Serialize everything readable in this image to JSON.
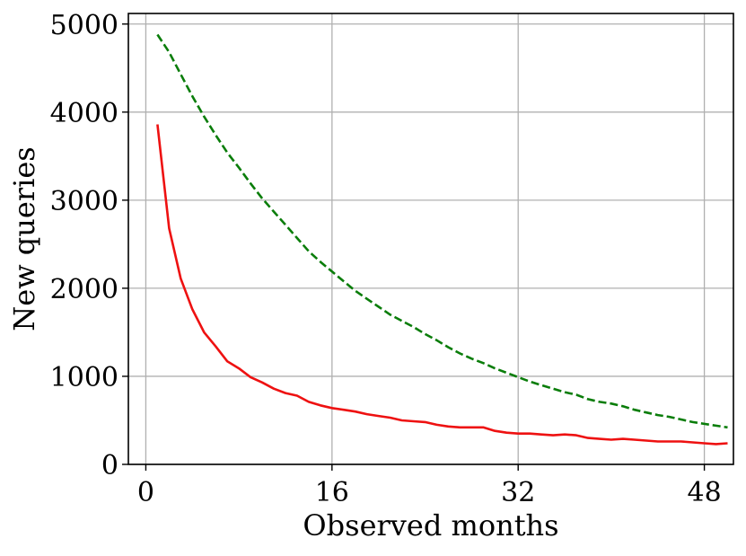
{
  "chart_data": {
    "type": "line",
    "xlabel": "Observed months",
    "ylabel": "New queries",
    "xlim": [
      -1.5,
      50.5
    ],
    "ylim": [
      0,
      5120
    ],
    "xticks": [
      0,
      16,
      32,
      48
    ],
    "yticks": [
      0,
      1000,
      2000,
      3000,
      4000,
      5000
    ],
    "grid": true,
    "series": [
      {
        "color": "#ee1111",
        "dash": "solid",
        "x": [
          1,
          2,
          3,
          4,
          5,
          6,
          7,
          8,
          9,
          10,
          11,
          12,
          13,
          14,
          15,
          16,
          17,
          18,
          19,
          20,
          21,
          22,
          23,
          24,
          25,
          26,
          27,
          28,
          29,
          30,
          31,
          32,
          33,
          34,
          35,
          36,
          37,
          38,
          39,
          40,
          41,
          42,
          43,
          44,
          45,
          46,
          47,
          48,
          49,
          50
        ],
        "y": [
          3860,
          2680,
          2110,
          1760,
          1500,
          1340,
          1170,
          1090,
          990,
          930,
          860,
          810,
          780,
          710,
          670,
          640,
          620,
          600,
          570,
          550,
          530,
          500,
          490,
          480,
          450,
          430,
          420,
          420,
          420,
          380,
          360,
          350,
          350,
          340,
          330,
          340,
          330,
          300,
          290,
          280,
          290,
          280,
          270,
          260,
          260,
          260,
          250,
          240,
          230,
          240
        ]
      },
      {
        "color": "#0a7d0a",
        "dash": "dashed",
        "x": [
          1,
          2,
          3,
          4,
          5,
          6,
          7,
          8,
          9,
          10,
          11,
          12,
          13,
          14,
          15,
          16,
          17,
          18,
          19,
          20,
          21,
          22,
          23,
          24,
          25,
          26,
          27,
          28,
          29,
          30,
          31,
          32,
          33,
          34,
          35,
          36,
          37,
          38,
          39,
          40,
          41,
          42,
          43,
          44,
          45,
          46,
          47,
          48,
          49,
          50
        ],
        "y": [
          4880,
          4680,
          4430,
          4180,
          3950,
          3740,
          3540,
          3370,
          3190,
          3020,
          2870,
          2720,
          2570,
          2420,
          2300,
          2190,
          2080,
          1970,
          1880,
          1790,
          1700,
          1630,
          1560,
          1480,
          1410,
          1330,
          1260,
          1200,
          1150,
          1090,
          1040,
          990,
          940,
          900,
          860,
          820,
          790,
          740,
          710,
          690,
          660,
          620,
          590,
          560,
          540,
          510,
          480,
          460,
          440,
          420
        ]
      }
    ]
  }
}
